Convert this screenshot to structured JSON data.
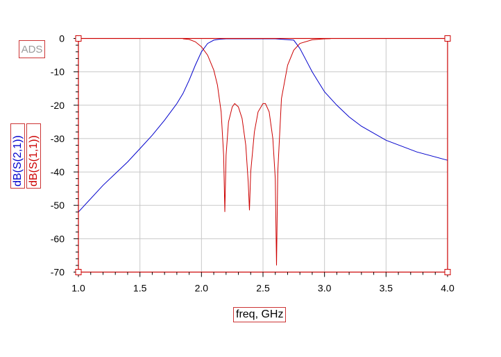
{
  "badge": {
    "text": "ADS"
  },
  "chart_data": {
    "type": "line",
    "xlabel": "freq, GHz",
    "xlim": [
      1.0,
      4.0
    ],
    "ylim": [
      -70,
      0
    ],
    "x_ticks": [
      "1.0",
      "1.5",
      "2.0",
      "2.5",
      "3.0",
      "3.5",
      "4.0"
    ],
    "y_ticks": [
      "0",
      "-10",
      "-20",
      "-30",
      "-40",
      "-50",
      "-60",
      "-70"
    ],
    "grid": true,
    "series": [
      {
        "name": "dB(S(2,1))",
        "color": "#0000cc",
        "x": [
          1.0,
          1.2,
          1.4,
          1.5,
          1.6,
          1.7,
          1.8,
          1.85,
          1.9,
          1.95,
          2.0,
          2.05,
          2.1,
          2.15,
          2.2,
          2.4,
          2.6,
          2.75,
          2.8,
          2.85,
          2.9,
          2.95,
          3.0,
          3.1,
          3.2,
          3.3,
          3.5,
          3.75,
          4.0
        ],
        "y": [
          -52,
          -44,
          -37,
          -33,
          -29,
          -24.5,
          -19.5,
          -16.5,
          -12.5,
          -8,
          -4,
          -1.5,
          -0.5,
          -0.2,
          -0.1,
          -0.1,
          -0.1,
          -0.5,
          -3,
          -6.5,
          -10,
          -13,
          -16,
          -20,
          -23.5,
          -26.3,
          -30.5,
          -34,
          -36.5
        ]
      },
      {
        "name": "dB(S(1,1))",
        "color": "#cc0000",
        "x": [
          1.85,
          1.9,
          1.95,
          2.0,
          2.05,
          2.1,
          2.13,
          2.16,
          2.18,
          2.19,
          2.2,
          2.22,
          2.25,
          2.27,
          2.3,
          2.33,
          2.36,
          2.38,
          2.39,
          2.4,
          2.43,
          2.46,
          2.5,
          2.52,
          2.55,
          2.58,
          2.6,
          2.61,
          2.62,
          2.65,
          2.7,
          2.75,
          2.8,
          2.9,
          3.0,
          3.05
        ],
        "y": [
          -0.1,
          -0.3,
          -1,
          -2.5,
          -5,
          -9.5,
          -14,
          -22,
          -35,
          -52,
          -35,
          -25,
          -20.5,
          -19.5,
          -20.5,
          -24,
          -32,
          -43,
          -51.5,
          -40,
          -28,
          -22,
          -19.5,
          -19.5,
          -22,
          -30,
          -42,
          -68,
          -40,
          -18,
          -8,
          -3.5,
          -1.5,
          -0.4,
          -0.1,
          -0.05
        ]
      }
    ]
  }
}
